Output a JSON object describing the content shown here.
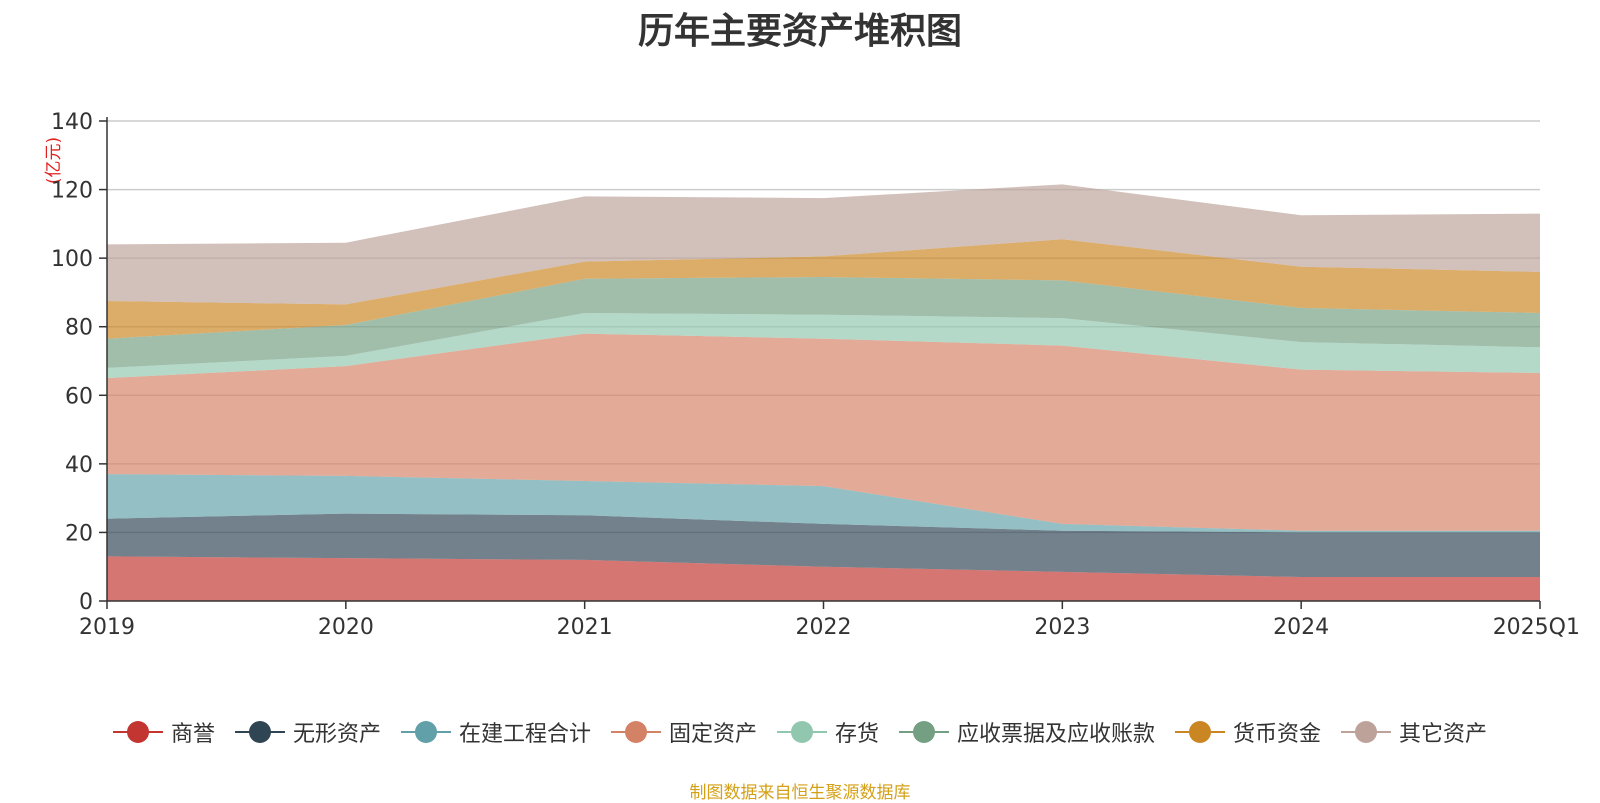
{
  "chart_data": {
    "type": "area",
    "stacked": true,
    "title": "历年主要资产堆积图",
    "unit": "(亿元)",
    "categories": [
      "2019",
      "2020",
      "2021",
      "2022",
      "2023",
      "2024",
      "2025Q1"
    ],
    "ylim": [
      0,
      140
    ],
    "yticks": [
      0,
      20,
      40,
      60,
      80,
      100,
      120,
      140
    ],
    "grid": true,
    "legend_position": "bottom",
    "series": [
      {
        "name": "商誉",
        "color": "#c23531",
        "values": [
          13,
          12.5,
          12,
          10,
          8.5,
          7,
          7
        ]
      },
      {
        "name": "无形资产",
        "color": "#2f4554",
        "values": [
          11,
          13,
          13,
          12.5,
          12,
          13,
          13
        ]
      },
      {
        "name": "在建工程合计",
        "color": "#61a0a8",
        "values": [
          13,
          11,
          10,
          11,
          2,
          0.5,
          0.5
        ]
      },
      {
        "name": "固定资产",
        "color": "#d48265",
        "values": [
          28,
          32,
          43,
          43,
          52,
          47,
          46
        ]
      },
      {
        "name": "存货",
        "color": "#91c7ae",
        "values": [
          3,
          3,
          6,
          7,
          8,
          8,
          7.5
        ]
      },
      {
        "name": "应收票据及应收账款",
        "color": "#749f83",
        "values": [
          8.5,
          9,
          10,
          11,
          11,
          10,
          10
        ]
      },
      {
        "name": "货币资金",
        "color": "#ca8622",
        "values": [
          11,
          6,
          5,
          6,
          12,
          12,
          12
        ]
      },
      {
        "name": "其它资产",
        "color": "#bda29a",
        "values": [
          16.5,
          18,
          19,
          17,
          16,
          15,
          17
        ]
      }
    ]
  },
  "source_note": "制图数据来自恒生聚源数据库"
}
